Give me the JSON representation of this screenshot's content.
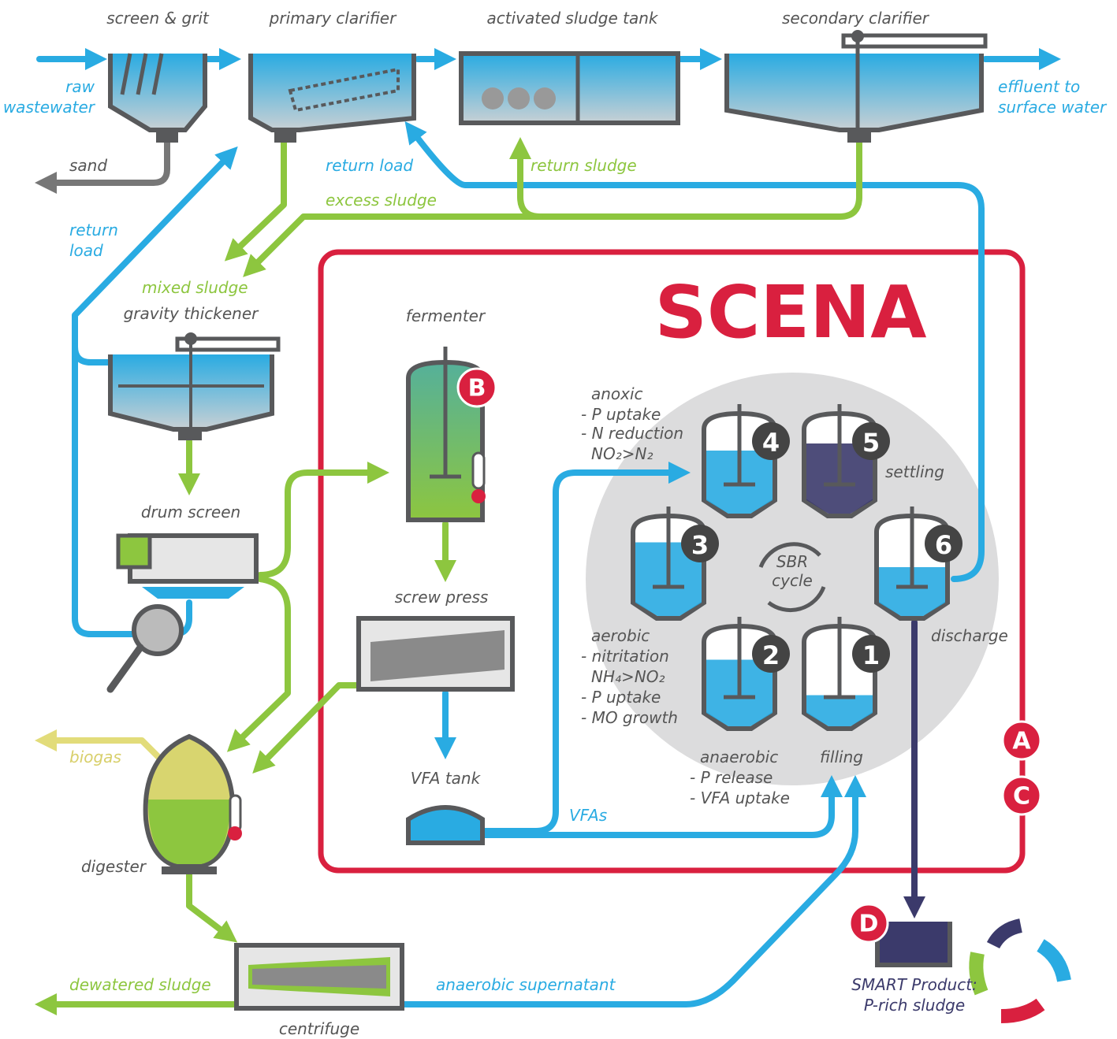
{
  "labels": {
    "screen_grit": "screen & grit",
    "primary_clarifier": "primary clarifier",
    "activated_sludge_tank": "activated sludge tank",
    "secondary_clarifier": "secondary clarifier",
    "raw_wastewater": [
      "raw",
      "wastewater"
    ],
    "effluent": [
      "effluent to",
      "surface water"
    ],
    "sand": "sand",
    "return_load_top": "return load",
    "return_sludge": "return sludge",
    "excess_sludge": "excess sludge",
    "return_load_left": [
      "return",
      "load"
    ],
    "mixed_sludge": "mixed sludge",
    "gravity_thickener": "gravity thickener",
    "drum_screen": "drum screen",
    "fermenter": "fermenter",
    "screw_press": "screw press",
    "vfa_tank": "VFA tank",
    "vfas": "VFAs",
    "biogas": "biogas",
    "digester": "digester",
    "dewatered_sludge": "dewatered sludge",
    "centrifuge": "centrifuge",
    "anaerobic_supernatant": "anaerobic supernatant"
  },
  "scena": {
    "title": "SCENA",
    "badges": [
      "A",
      "B",
      "C",
      "D"
    ],
    "sbr_cycle": [
      "SBR",
      "cycle"
    ],
    "tanks": [
      "1",
      "2",
      "3",
      "4",
      "5",
      "6"
    ],
    "phases": {
      "anoxic": [
        "anoxic",
        "- P uptake",
        "- N reduction",
        "NO₂>N₂"
      ],
      "settling": "settling",
      "aerobic": [
        "aerobic",
        "- nitritation",
        "NH₄>NO₂",
        "- P uptake",
        "- MO growth"
      ],
      "discharge": "discharge",
      "anaerobic": [
        "anaerobic",
        "- P release",
        "- VFA uptake"
      ],
      "filling": "filling"
    },
    "product": [
      "SMART Product:",
      "P-rich sludge"
    ]
  }
}
